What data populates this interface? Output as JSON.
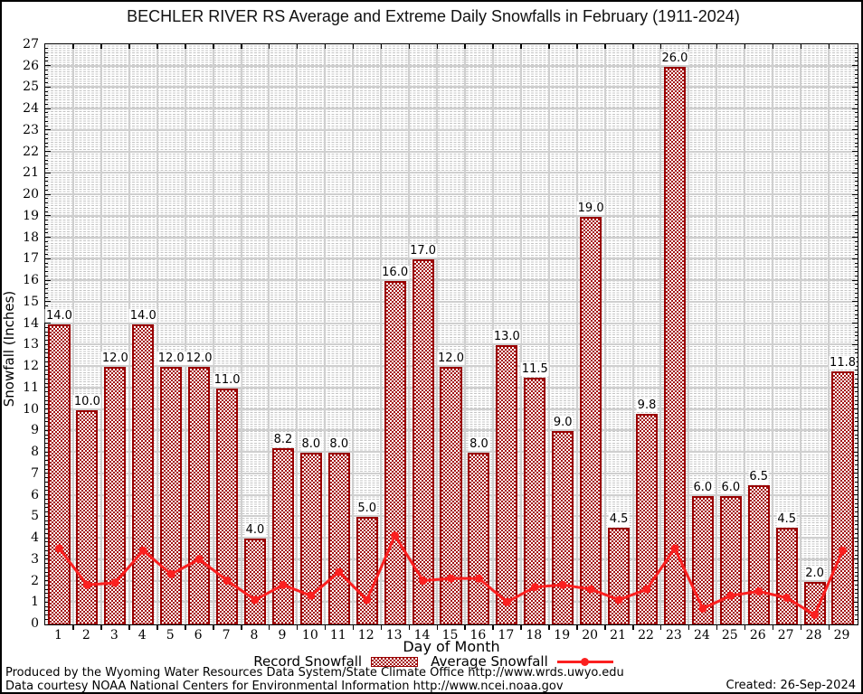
{
  "title": "BECHLER RIVER RS Average and Extreme Daily Snowfalls in February (1911-2024)",
  "axes": {
    "y_label": "Snowfall (Inches)",
    "x_label": "Day of Month",
    "y_min": 0,
    "y_max": 27,
    "y_tick_step": 1
  },
  "legend": {
    "record_label": "Record Snowfall",
    "average_label": "Average Snowfall"
  },
  "footer": {
    "line1": "Produced by the Wyoming Water Resources Data System/State Climate Office http://www.wrds.uwyo.edu",
    "line2": "Data courtesy NOAA National Centers for Environmental Information http://www.ncei.noaa.gov",
    "created": "Created: 26-Sep-2024"
  },
  "colors": {
    "bar_border": "#990000",
    "bar_hatch": "#a31212",
    "average_line": "#fb2020",
    "grid_major": "#cfcfcf",
    "grid_minor": "#c4c4c4"
  },
  "chart_data": {
    "type": "bar",
    "title": "BECHLER RIVER RS Average and Extreme Daily Snowfalls in February (1911-2024)",
    "xlabel": "Day of Month",
    "ylabel": "Snowfall (Inches)",
    "ylim": [
      0,
      27
    ],
    "grid": true,
    "legend_position": "bottom",
    "categories": [
      1,
      2,
      3,
      4,
      5,
      6,
      7,
      8,
      9,
      10,
      11,
      12,
      13,
      14,
      15,
      16,
      17,
      18,
      19,
      20,
      21,
      22,
      23,
      24,
      25,
      26,
      27,
      28,
      29
    ],
    "series": [
      {
        "name": "Record Snowfall",
        "type": "bar",
        "data_labels": true,
        "values": [
          14.0,
          10.0,
          12.0,
          14.0,
          12.0,
          12.0,
          11.0,
          4.0,
          8.2,
          8.0,
          8.0,
          5.0,
          16.0,
          17.0,
          12.0,
          8.0,
          13.0,
          11.5,
          9.0,
          19.0,
          4.5,
          9.8,
          26.0,
          6.0,
          6.0,
          6.5,
          4.5,
          2.0,
          11.8
        ]
      },
      {
        "name": "Average Snowfall",
        "type": "line",
        "data_labels": false,
        "values": [
          3.5,
          1.8,
          1.9,
          3.4,
          2.3,
          3.0,
          2.0,
          1.1,
          1.8,
          1.3,
          2.4,
          1.1,
          4.1,
          2.0,
          2.1,
          2.1,
          1.0,
          1.7,
          1.8,
          1.6,
          1.1,
          1.6,
          3.5,
          0.7,
          1.3,
          1.5,
          1.2,
          0.4,
          3.4
        ]
      }
    ]
  }
}
